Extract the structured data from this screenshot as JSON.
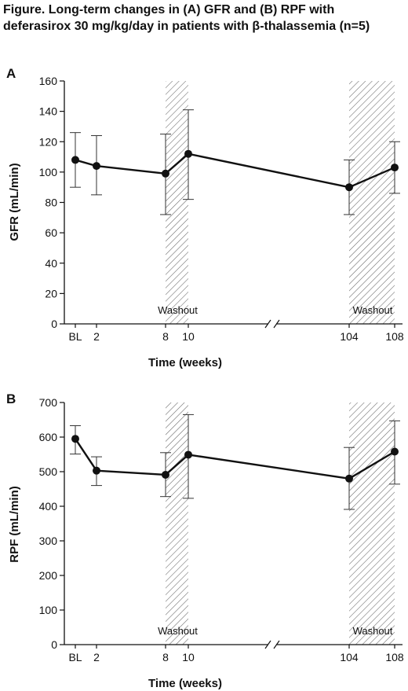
{
  "title": "Figure. Long-term changes in (A) GFR and (B) RPF with deferasirox 30 mg/kg/day in patients with β-thalassemia (n=5)",
  "chart_data": [
    {
      "type": "line",
      "panel": "A",
      "ylabel": "GFR (mL/min)",
      "xlabel": "Time (weeks)",
      "categories": [
        "BL",
        "2",
        "8",
        "10",
        "104",
        "108"
      ],
      "values": [
        108,
        104,
        99,
        112,
        90,
        103
      ],
      "error_upper": [
        126,
        124,
        125,
        141,
        108,
        120
      ],
      "error_lower": [
        90,
        85,
        72,
        82,
        72,
        86
      ],
      "ylim": [
        0,
        160
      ],
      "yticks": [
        "0",
        "20",
        "40",
        "60",
        "80",
        "100",
        "120",
        "140",
        "160"
      ],
      "shaded_regions": [
        {
          "from": "8",
          "to": "10",
          "label": "Washout"
        },
        {
          "from": "104",
          "to": "108",
          "label": "Washout"
        }
      ],
      "axis_break": "//",
      "grid": false
    },
    {
      "type": "line",
      "panel": "B",
      "ylabel": "RPF (mL/min)",
      "xlabel": "Time (weeks)",
      "categories": [
        "BL",
        "2",
        "8",
        "10",
        "104",
        "108"
      ],
      "values": [
        595,
        503,
        491,
        549,
        480,
        558
      ],
      "error_upper": [
        633,
        543,
        555,
        665,
        570,
        647
      ],
      "error_lower": [
        551,
        460,
        428,
        423,
        391,
        464
      ],
      "ylim": [
        0,
        700
      ],
      "yticks": [
        "0",
        "100",
        "200",
        "300",
        "400",
        "500",
        "600",
        "700"
      ],
      "shaded_regions": [
        {
          "from": "8",
          "to": "10",
          "label": "Washout"
        },
        {
          "from": "104",
          "to": "108",
          "label": "Washout"
        }
      ],
      "axis_break": "//",
      "grid": false
    }
  ]
}
